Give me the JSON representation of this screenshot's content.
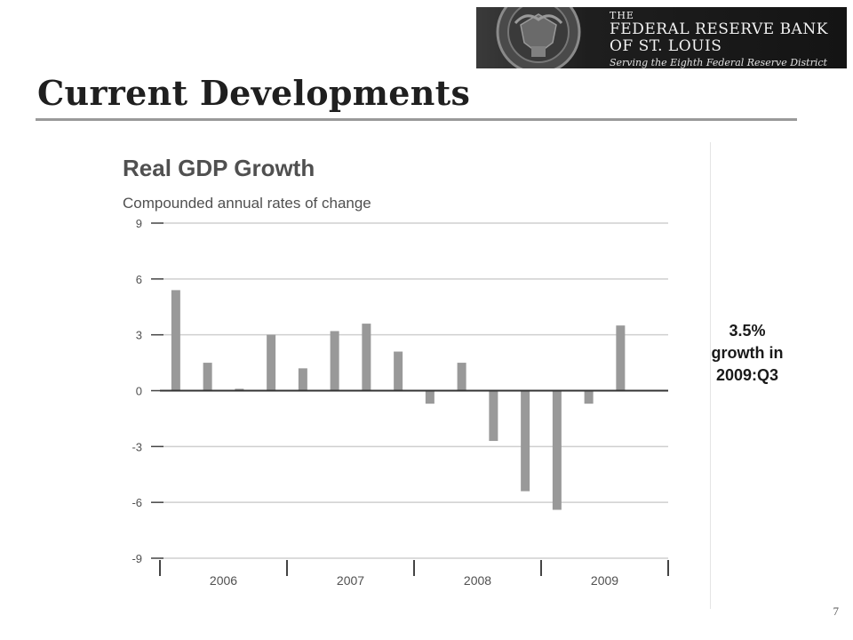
{
  "slide": {
    "title": "Current Developments",
    "page_number": "7"
  },
  "logo": {
    "line1": "THE",
    "line2": "FEDERAL RESERVE BANK",
    "line3": "OF ST. LOUIS",
    "line4": "Serving the Eighth Federal Reserve District"
  },
  "annotation": {
    "line1": "3.5%",
    "line2": "growth in",
    "line3": "2009:Q3"
  },
  "colors": {
    "bar": "#999999",
    "grid": "#cfcfcf",
    "axis": "#333333"
  },
  "chart_data": {
    "type": "bar",
    "title": "Real GDP Growth",
    "subtitle": "Compounded annual rates of change",
    "ylim": [
      -9,
      9
    ],
    "yticks": [
      9,
      6,
      3,
      0,
      -3,
      -6,
      -9
    ],
    "ytick_labels": [
      "9",
      "6",
      "3",
      "0",
      "-3",
      "-6",
      "-9"
    ],
    "years": [
      "2006",
      "2007",
      "2008",
      "2009"
    ],
    "grid": true,
    "x": [
      "2006:Q1",
      "2006:Q2",
      "2006:Q3",
      "2006:Q4",
      "2007:Q1",
      "2007:Q2",
      "2007:Q3",
      "2007:Q4",
      "2008:Q1",
      "2008:Q2",
      "2008:Q3",
      "2008:Q4",
      "2009:Q1",
      "2009:Q2",
      "2009:Q3"
    ],
    "values": [
      5.4,
      1.5,
      0.1,
      3.0,
      1.2,
      3.2,
      3.6,
      2.1,
      -0.7,
      1.5,
      -2.7,
      -5.4,
      -6.4,
      -0.7,
      3.5
    ]
  }
}
